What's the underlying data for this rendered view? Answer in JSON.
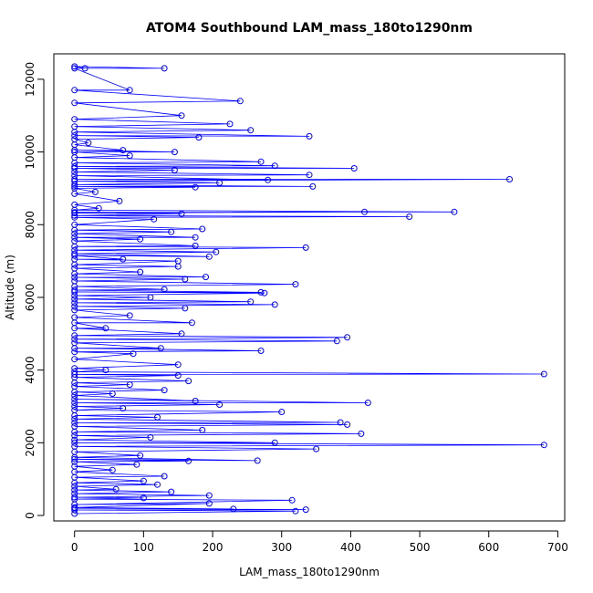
{
  "chart_data": {
    "type": "line",
    "title": "ATOM4 Southbound LAM_mass_180to1290nm",
    "xlabel": "LAM_mass_180to1290nm",
    "ylabel": "Altitude (m)",
    "xlim": [
      -30,
      710
    ],
    "ylim": [
      -150,
      12700
    ],
    "x_ticks": [
      0,
      100,
      200,
      300,
      400,
      500,
      600,
      700
    ],
    "y_ticks": [
      0,
      2000,
      4000,
      6000,
      8000,
      10000,
      12000
    ],
    "series_color": "#0000ff",
    "marker": "open-circle",
    "series": [
      {
        "points": [
          [
            0,
            50
          ],
          [
            320,
            120
          ],
          [
            0,
            150
          ],
          [
            335,
            160
          ],
          [
            0,
            200
          ],
          [
            230,
            180
          ],
          [
            0,
            220
          ],
          [
            195,
            330
          ],
          [
            0,
            300
          ],
          [
            315,
            420
          ],
          [
            0,
            450
          ],
          [
            100,
            480
          ],
          [
            0,
            500
          ],
          [
            195,
            550
          ],
          [
            0,
            600
          ],
          [
            140,
            650
          ],
          [
            0,
            700
          ],
          [
            60,
            720
          ],
          [
            0,
            800
          ],
          [
            120,
            850
          ],
          [
            0,
            900
          ],
          [
            100,
            950
          ],
          [
            0,
            1050
          ],
          [
            130,
            1080
          ],
          [
            0,
            1200
          ],
          [
            55,
            1250
          ],
          [
            0,
            1350
          ],
          [
            90,
            1400
          ],
          [
            0,
            1480
          ],
          [
            165,
            1500
          ],
          [
            0,
            1550
          ],
          [
            265,
            1510
          ],
          [
            0,
            1600
          ],
          [
            95,
            1650
          ],
          [
            0,
            1750
          ],
          [
            350,
            1830
          ],
          [
            0,
            1900
          ],
          [
            680,
            1940
          ],
          [
            0,
            2000
          ],
          [
            290,
            2000
          ],
          [
            0,
            2080
          ],
          [
            110,
            2150
          ],
          [
            0,
            2200
          ],
          [
            415,
            2250
          ],
          [
            0,
            2300
          ],
          [
            185,
            2350
          ],
          [
            0,
            2450
          ],
          [
            395,
            2500
          ],
          [
            0,
            2550
          ],
          [
            385,
            2560
          ],
          [
            0,
            2650
          ],
          [
            120,
            2700
          ],
          [
            0,
            2750
          ],
          [
            300,
            2850
          ],
          [
            0,
            2900
          ],
          [
            70,
            2950
          ],
          [
            0,
            3000
          ],
          [
            210,
            3050
          ],
          [
            0,
            3100
          ],
          [
            425,
            3100
          ],
          [
            0,
            3200
          ],
          [
            175,
            3150
          ],
          [
            0,
            3300
          ],
          [
            55,
            3350
          ],
          [
            0,
            3400
          ],
          [
            130,
            3450
          ],
          [
            0,
            3550
          ],
          [
            80,
            3600
          ],
          [
            0,
            3650
          ],
          [
            165,
            3700
          ],
          [
            0,
            3800
          ],
          [
            150,
            3850
          ],
          [
            0,
            3880
          ],
          [
            680,
            3890
          ],
          [
            0,
            3950
          ],
          [
            45,
            4000
          ],
          [
            0,
            4050
          ],
          [
            150,
            4150
          ],
          [
            0,
            4300
          ],
          [
            85,
            4450
          ],
          [
            0,
            4500
          ],
          [
            270,
            4530
          ],
          [
            0,
            4600
          ],
          [
            125,
            4600
          ],
          [
            0,
            4750
          ],
          [
            380,
            4800
          ],
          [
            0,
            4850
          ],
          [
            395,
            4900
          ],
          [
            0,
            4950
          ],
          [
            155,
            5000
          ],
          [
            0,
            5150
          ],
          [
            45,
            5150
          ],
          [
            0,
            5300
          ],
          [
            170,
            5300
          ],
          [
            0,
            5450
          ],
          [
            80,
            5500
          ],
          [
            0,
            5650
          ],
          [
            160,
            5700
          ],
          [
            0,
            5750
          ],
          [
            290,
            5800
          ],
          [
            0,
            5850
          ],
          [
            255,
            5880
          ],
          [
            0,
            5950
          ],
          [
            110,
            6000
          ],
          [
            0,
            6050
          ],
          [
            275,
            6120
          ],
          [
            0,
            6150
          ],
          [
            270,
            6140
          ],
          [
            0,
            6200
          ],
          [
            130,
            6220
          ],
          [
            0,
            6300
          ],
          [
            320,
            6360
          ],
          [
            0,
            6450
          ],
          [
            160,
            6500
          ],
          [
            0,
            6550
          ],
          [
            190,
            6560
          ],
          [
            0,
            6650
          ],
          [
            95,
            6700
          ],
          [
            0,
            6800
          ],
          [
            150,
            6850
          ],
          [
            0,
            6900
          ],
          [
            150,
            7000
          ],
          [
            0,
            7050
          ],
          [
            70,
            7050
          ],
          [
            0,
            7150
          ],
          [
            195,
            7120
          ],
          [
            0,
            7200
          ],
          [
            205,
            7250
          ],
          [
            0,
            7300
          ],
          [
            335,
            7370
          ],
          [
            0,
            7400
          ],
          [
            175,
            7420
          ],
          [
            0,
            7550
          ],
          [
            95,
            7600
          ],
          [
            0,
            7650
          ],
          [
            175,
            7650
          ],
          [
            0,
            7750
          ],
          [
            140,
            7800
          ],
          [
            0,
            7850
          ],
          [
            185,
            7880
          ],
          [
            0,
            8000
          ],
          [
            115,
            8150
          ],
          [
            0,
            8200
          ],
          [
            485,
            8220
          ],
          [
            0,
            8250
          ],
          [
            155,
            8300
          ],
          [
            0,
            8320
          ],
          [
            420,
            8350
          ],
          [
            0,
            8340
          ],
          [
            550,
            8350
          ],
          [
            0,
            8400
          ],
          [
            35,
            8450
          ],
          [
            0,
            8550
          ],
          [
            65,
            8650
          ],
          [
            0,
            8850
          ],
          [
            30,
            8900
          ],
          [
            0,
            9000
          ],
          [
            175,
            9030
          ],
          [
            0,
            9050
          ],
          [
            345,
            9050
          ],
          [
            0,
            9100
          ],
          [
            210,
            9150
          ],
          [
            0,
            9200
          ],
          [
            630,
            9250
          ],
          [
            0,
            9250
          ],
          [
            280,
            9230
          ],
          [
            0,
            9350
          ],
          [
            340,
            9370
          ],
          [
            0,
            9450
          ],
          [
            145,
            9500
          ],
          [
            0,
            9550
          ],
          [
            405,
            9550
          ],
          [
            0,
            9600
          ],
          [
            290,
            9620
          ],
          [
            0,
            9700
          ],
          [
            270,
            9730
          ],
          [
            0,
            9850
          ],
          [
            80,
            9900
          ],
          [
            0,
            10000
          ],
          [
            145,
            10000
          ],
          [
            0,
            10050
          ],
          [
            70,
            10050
          ],
          [
            0,
            10200
          ],
          [
            20,
            10250
          ],
          [
            0,
            10350
          ],
          [
            180,
            10400
          ],
          [
            0,
            10450
          ],
          [
            340,
            10430
          ],
          [
            0,
            10550
          ],
          [
            255,
            10600
          ],
          [
            0,
            10700
          ],
          [
            225,
            10770
          ],
          [
            0,
            10900
          ],
          [
            155,
            11000
          ],
          [
            0,
            11350
          ],
          [
            240,
            11400
          ],
          [
            0,
            11700
          ],
          [
            80,
            11700
          ],
          [
            0,
            12300
          ],
          [
            130,
            12300
          ],
          [
            0,
            12350
          ],
          [
            15,
            12300
          ]
        ]
      }
    ]
  }
}
